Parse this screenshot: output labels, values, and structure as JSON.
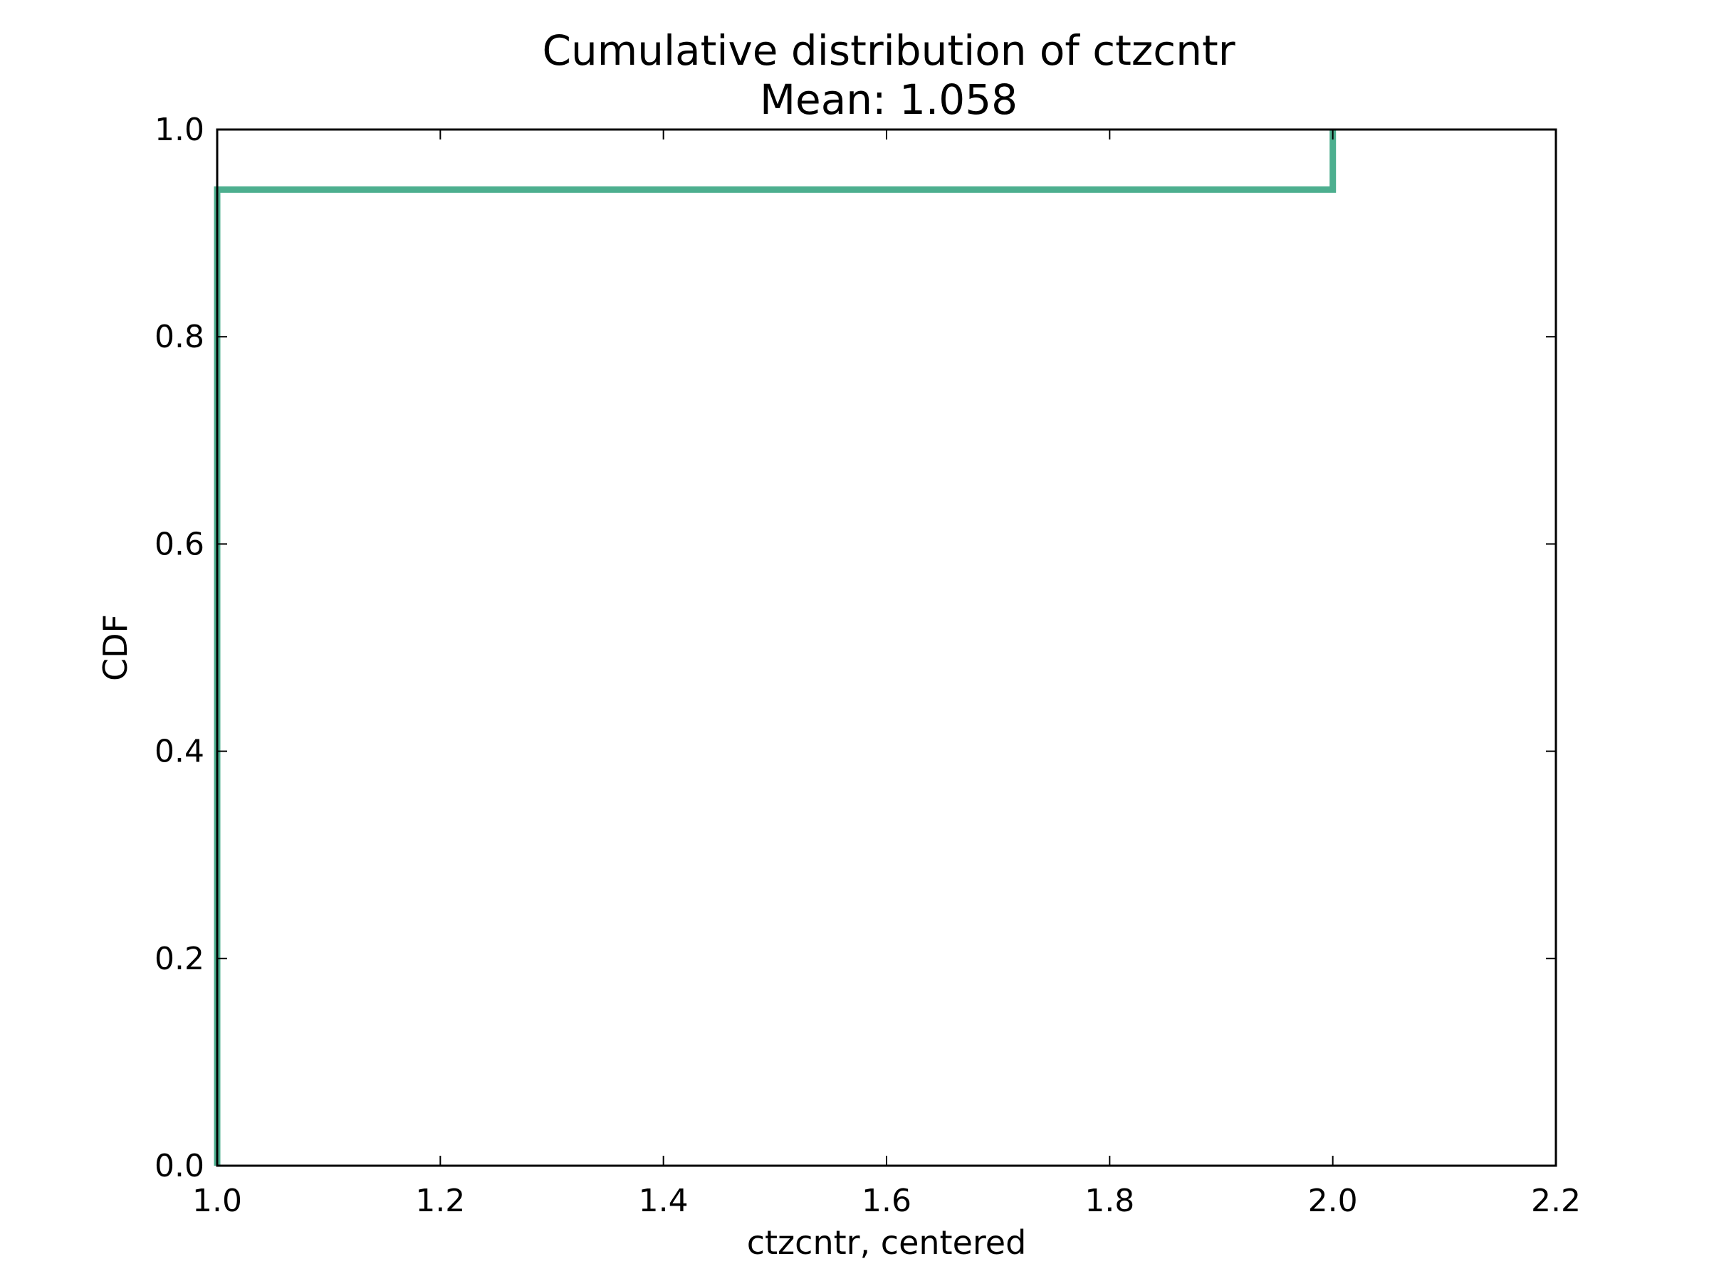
{
  "chart_data": {
    "type": "line",
    "title": "Cumulative distribution of ctzcntr",
    "subtitle": "Mean: 1.058",
    "xlabel": "ctzcntr, centered",
    "ylabel": "CDF",
    "xlim": [
      1.0,
      2.2
    ],
    "ylim": [
      0.0,
      1.0
    ],
    "xticks": [
      "1.0",
      "1.2",
      "1.4",
      "1.6",
      "1.8",
      "2.0",
      "2.2"
    ],
    "yticks": [
      "0.0",
      "0.2",
      "0.4",
      "0.6",
      "0.8",
      "1.0"
    ],
    "grid": false,
    "series": [
      {
        "color": "#4daf8f",
        "x": [
          1.0,
          1.0,
          2.0,
          2.0
        ],
        "y": [
          0.0,
          0.942,
          0.942,
          1.0
        ]
      }
    ]
  }
}
